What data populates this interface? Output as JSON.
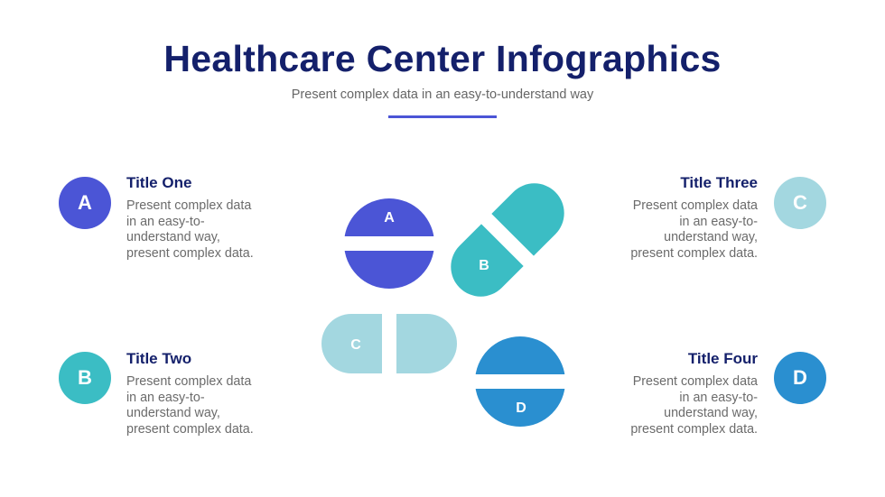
{
  "header": {
    "title": "Healthcare Center Infographics",
    "subtitle": "Present complex data in an easy-to-understand way"
  },
  "colors": {
    "A": "#4b55d6",
    "B": "#3bbdc4",
    "C": "#a3d7e0",
    "D": "#2a8fd0",
    "title": "#14206b"
  },
  "items": [
    {
      "letter": "A",
      "title": "Title One",
      "lines": [
        "Present complex data",
        "in an easy-to-",
        "understand way,",
        "present complex data."
      ]
    },
    {
      "letter": "B",
      "title": "Title Two",
      "lines": [
        "Present complex data",
        "in an easy-to-",
        "understand way,",
        "present complex data."
      ]
    },
    {
      "letter": "C",
      "title": "Title Three",
      "lines": [
        "Present complex data",
        "in an easy-to-",
        "understand way,",
        "present complex data."
      ]
    },
    {
      "letter": "D",
      "title": "Title Four",
      "lines": [
        "Present complex data",
        "in an easy-to-",
        "understand way,",
        "present complex data."
      ]
    }
  ],
  "pills": [
    {
      "label": "A",
      "shape": "split-tablet"
    },
    {
      "label": "B",
      "shape": "capsule"
    },
    {
      "label": "C",
      "shape": "capsule"
    },
    {
      "label": "D",
      "shape": "split-tablet"
    }
  ]
}
